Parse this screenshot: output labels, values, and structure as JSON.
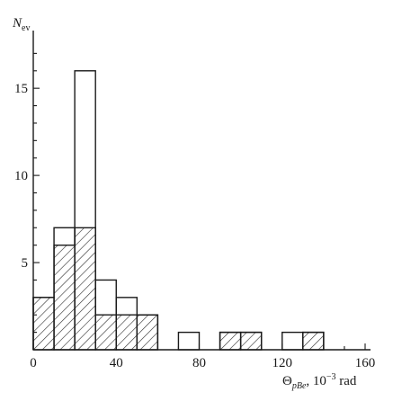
{
  "chart_data": {
    "type": "bar",
    "title": "",
    "xlabel": {
      "symbol": "Θ",
      "subscript": "pBe",
      "sep": ", 10",
      "exponent": "−3",
      "unit": " rad"
    },
    "ylabel": {
      "symbol": "N",
      "subscript": "ev"
    },
    "xlim": [
      0,
      160
    ],
    "ylim": [
      0,
      18
    ],
    "xticks": [
      {
        "value": 0,
        "label": "0"
      },
      {
        "value": 40,
        "label": "40"
      },
      {
        "value": 80,
        "label": "80"
      },
      {
        "value": 120,
        "label": "120"
      },
      {
        "value": 160,
        "label": "160"
      }
    ],
    "yticks": [
      {
        "value": 5,
        "label": "5"
      },
      {
        "value": 10,
        "label": "10"
      },
      {
        "value": 15,
        "label": "15"
      }
    ],
    "bin_width": 10,
    "series": [
      {
        "style": "open",
        "bins": [
          {
            "x0": 0,
            "x1": 10,
            "count": 3
          },
          {
            "x0": 10,
            "x1": 20,
            "count": 7
          },
          {
            "x0": 20,
            "x1": 30,
            "count": 16
          },
          {
            "x0": 30,
            "x1": 40,
            "count": 4
          },
          {
            "x0": 40,
            "x1": 50,
            "count": 3
          },
          {
            "x0": 50,
            "x1": 60,
            "count": 2
          },
          {
            "x0": 70,
            "x1": 80,
            "count": 1
          },
          {
            "x0": 90,
            "x1": 100,
            "count": 1
          },
          {
            "x0": 100,
            "x1": 110,
            "count": 1
          },
          {
            "x0": 120,
            "x1": 130,
            "count": 1
          },
          {
            "x0": 130,
            "x1": 140,
            "count": 1
          }
        ]
      },
      {
        "style": "hatched",
        "bins": [
          {
            "x0": 0,
            "x1": 10,
            "count": 3
          },
          {
            "x0": 10,
            "x1": 20,
            "count": 6
          },
          {
            "x0": 20,
            "x1": 30,
            "count": 7
          },
          {
            "x0": 30,
            "x1": 40,
            "count": 2
          },
          {
            "x0": 40,
            "x1": 50,
            "count": 2
          },
          {
            "x0": 50,
            "x1": 60,
            "count": 2
          },
          {
            "x0": 90,
            "x1": 100,
            "count": 1
          },
          {
            "x0": 100,
            "x1": 110,
            "count": 1
          },
          {
            "x0": 130,
            "x1": 140,
            "count": 1
          }
        ]
      }
    ],
    "grid": false,
    "colors": {
      "line": "#1a1a1a",
      "hatch": "#2a2a2a",
      "background": "#ffffff"
    }
  }
}
